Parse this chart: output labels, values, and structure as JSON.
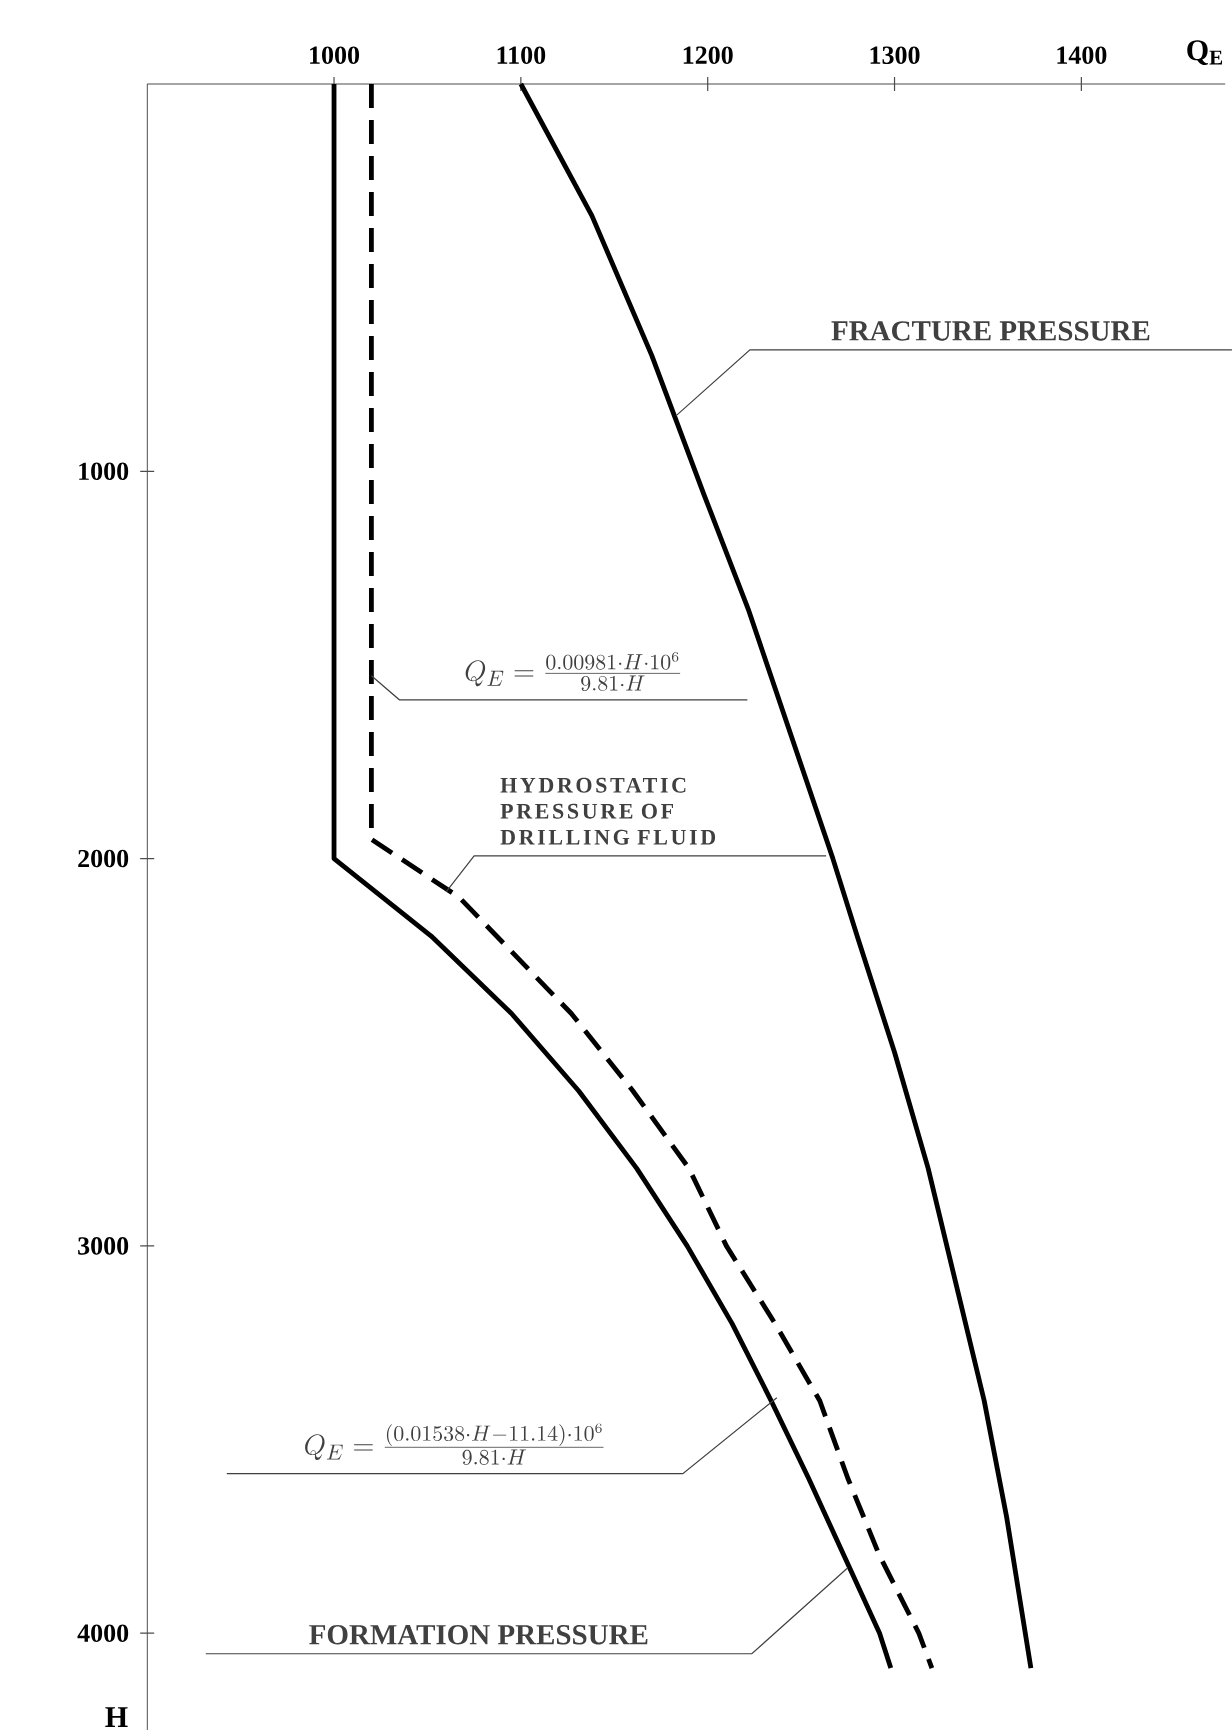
{
  "chart_data": {
    "type": "line",
    "xlabel": "Q$_{E}$",
    "ylabel": "H",
    "xlim": [
      900,
      1477
    ],
    "ylim": [
      4250,
      0
    ],
    "xticks": [
      1000,
      1100,
      1200,
      1300,
      1400
    ],
    "yticks": [
      1000,
      2000,
      3000,
      4000
    ],
    "grid": false,
    "marker": "none",
    "series": [
      {
        "color": "#000000",
        "line_style": "solid",
        "x": [
          1000,
          1000,
          1052,
          1095,
          1131,
          1162,
          1189,
          1213,
          1234,
          1254,
          1273,
          1292,
          1298
        ],
        "values": [
          0,
          2000,
          2200,
          2400,
          2600,
          2800,
          3000,
          3200,
          3400,
          3600,
          3800,
          4000,
          4090
        ]
      },
      {
        "color": "#000000",
        "line_style": "dashed",
        "x": [
          1020,
          1020,
          1067,
          1087,
          1127,
          1160,
          1190,
          1210,
          1236,
          1260,
          1275,
          1292,
          1313,
          1320
        ],
        "values": [
          0,
          1950,
          2100,
          2200,
          2400,
          2600,
          2800,
          3000,
          3200,
          3400,
          3600,
          3800,
          4000,
          4090
        ]
      },
      {
        "color": "#000000",
        "line_style": "solid",
        "x": [
          1100,
          1138,
          1170,
          1198,
          1222,
          1267,
          1280,
          1300,
          1318,
          1333,
          1348,
          1360,
          1373
        ],
        "values": [
          0,
          340,
          700,
          1060,
          1360,
          2000,
          2200,
          2500,
          2800,
          3100,
          3400,
          3700,
          4090
        ]
      }
    ],
    "annotations": [
      {
        "text": "FRACTURE PRESSURE",
        "x": 1183,
        "y": 857
      },
      {
        "text": "Q_{E}=\\frac{0.00981\\cdot H\\cdot 10^{6}}{9.81\\cdot H}",
        "x": 1020,
        "y": 1528
      },
      {
        "text": "HYDROSTATIC PRESSURE OF DRILLING FLUID",
        "x": 1060,
        "y": 2086
      },
      {
        "text": "Q_{E}=\\frac{(0.01538\\cdot H-11.14)\\cdot 10^{6}}{9.81\\cdot H}",
        "x": 1237,
        "y": 3392
      },
      {
        "text": "FORMATION PRESSURE",
        "x": 1275,
        "y": 3831
      }
    ]
  }
}
